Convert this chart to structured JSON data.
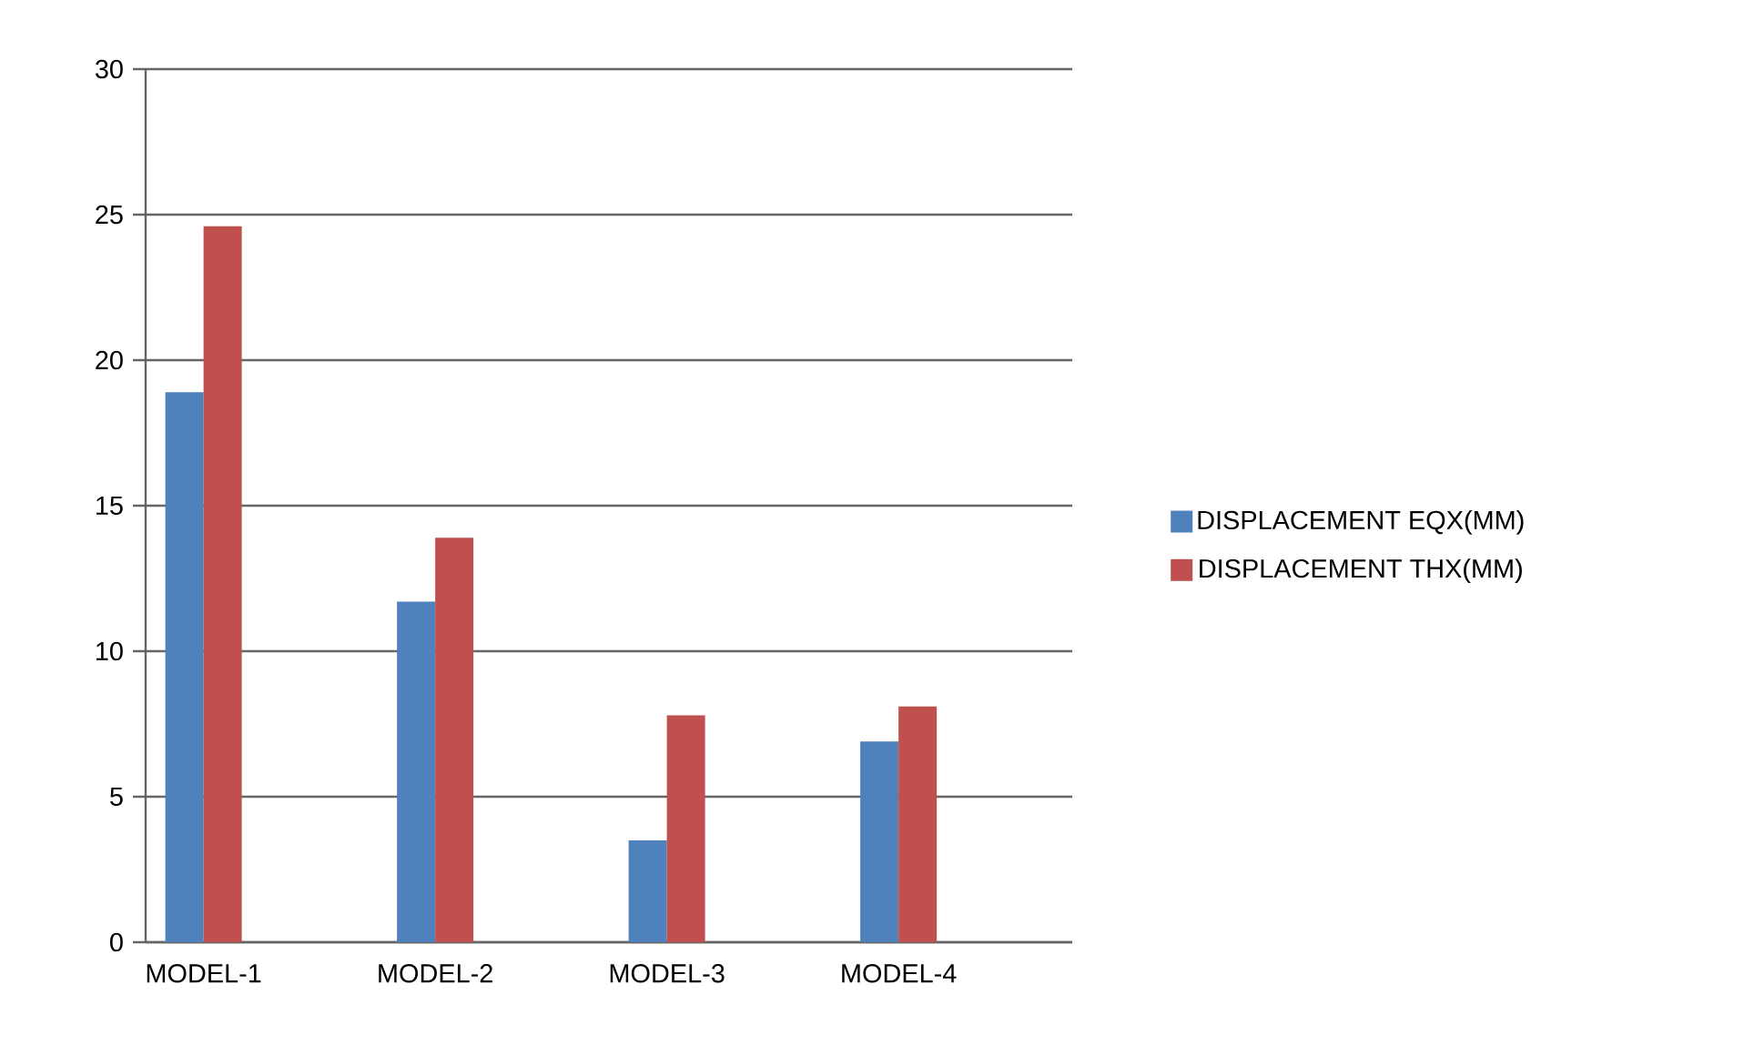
{
  "chart_data": {
    "type": "bar",
    "categories": [
      "MODEL-1",
      null,
      "MODEL-2",
      null,
      "MODEL-3",
      null,
      "MODEL-4",
      null
    ],
    "series": [
      {
        "name": "DISPLACEMENT EQX(MM)",
        "color": "#4f81bd",
        "values": [
          18.9,
          null,
          11.7,
          null,
          3.5,
          null,
          6.9,
          null
        ]
      },
      {
        "name": "DISPLACEMENT THX(MM)",
        "color": "#c0504d",
        "values": [
          24.6,
          null,
          13.9,
          null,
          7.8,
          null,
          8.1,
          null
        ]
      }
    ],
    "ylim": [
      0,
      30
    ],
    "yticks": [
      0,
      5,
      10,
      15,
      20,
      25,
      30
    ],
    "grid": "y",
    "legend": "right"
  }
}
